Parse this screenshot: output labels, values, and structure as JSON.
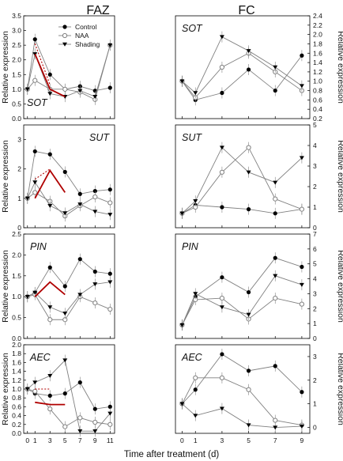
{
  "header": {
    "left": "FAZ",
    "right": "FC"
  },
  "xlabel": "Time after treatment (d)",
  "ylabel_left": "Relative expression",
  "ylabel_right": "Relative expression",
  "legend": {
    "control": "Control",
    "naa": "NAA",
    "shading": "Shading"
  },
  "colors": {
    "line": "#808080",
    "marker": "#000000",
    "red": "#b00000",
    "axis": "#000000"
  },
  "chart_data": [
    {
      "type": "line",
      "panel": "FAZ",
      "gene": "SOT",
      "x": [
        0,
        1,
        3,
        5,
        7,
        9,
        11
      ],
      "ylim": [
        0,
        3.5
      ],
      "yticks": [
        "0.0",
        "0.5",
        "1.0",
        "1.5",
        "2.0",
        "2.5",
        "3.0",
        "3.5"
      ],
      "legend": true,
      "series": [
        {
          "name": "Control",
          "values": [
            1.0,
            2.7,
            1.5,
            1.0,
            1.1,
            0.95,
            1.05
          ]
        },
        {
          "name": "NAA",
          "values": [
            1.0,
            1.3,
            1.0,
            1.0,
            0.9,
            0.65,
            2.5
          ]
        },
        {
          "name": "Shading",
          "values": [
            1.0,
            2.2,
            0.85,
            0.75,
            0.95,
            0.75,
            2.5
          ]
        }
      ],
      "annotations": [
        {
          "style": "red",
          "x": [
            1,
            3,
            5
          ],
          "y": [
            2.2,
            1.0,
            0.75
          ]
        },
        {
          "style": "red-dotted",
          "x": [
            1,
            3
          ],
          "y": [
            2.55,
            1.15
          ]
        }
      ]
    },
    {
      "type": "line",
      "panel": "FC",
      "gene": "SOT",
      "x": [
        0,
        1,
        3,
        5,
        7,
        9
      ],
      "ylim": [
        0.2,
        2.4
      ],
      "yticks": [
        "0.2",
        "0.4",
        "0.6",
        "0.8",
        "1.0",
        "1.2",
        "1.4",
        "1.6",
        "1.8",
        "2.0",
        "2.2",
        "2.4"
      ],
      "series": [
        {
          "name": "Control",
          "values": [
            1.0,
            0.6,
            0.75,
            1.25,
            0.8,
            1.55
          ]
        },
        {
          "name": "NAA",
          "values": [
            1.0,
            0.65,
            1.3,
            1.6,
            1.2,
            0.8
          ]
        },
        {
          "name": "Shading",
          "values": [
            1.0,
            0.75,
            1.95,
            1.65,
            1.3,
            0.9
          ]
        }
      ]
    },
    {
      "type": "line",
      "panel": "FAZ",
      "gene": "SUT",
      "x": [
        0,
        1,
        3,
        5,
        7,
        9,
        11
      ],
      "ylim": [
        0,
        3.5
      ],
      "yticks": [
        "0",
        "1",
        "2",
        "3"
      ],
      "series": [
        {
          "name": "Control",
          "values": [
            1.0,
            2.6,
            2.5,
            1.9,
            1.15,
            1.25,
            1.3
          ]
        },
        {
          "name": "NAA",
          "values": [
            1.0,
            1.2,
            0.9,
            0.4,
            0.75,
            1.05,
            0.85
          ]
        },
        {
          "name": "Shading",
          "values": [
            1.0,
            1.55,
            0.75,
            0.5,
            0.8,
            0.55,
            0.45
          ]
        }
      ],
      "annotations": [
        {
          "style": "red",
          "x": [
            1,
            3,
            5
          ],
          "y": [
            1.0,
            1.95,
            1.2
          ]
        },
        {
          "style": "red-dotted",
          "x": [
            1,
            3
          ],
          "y": [
            1.65,
            2.0
          ]
        }
      ]
    },
    {
      "type": "line",
      "panel": "FC",
      "gene": "SUT",
      "x": [
        0,
        1,
        3,
        5,
        7,
        9
      ],
      "ylim": [
        0,
        5
      ],
      "yticks": [
        "0",
        "1",
        "2",
        "3",
        "4",
        "5"
      ],
      "series": [
        {
          "name": "Control",
          "values": [
            0.7,
            1.1,
            1.0,
            0.9,
            0.7,
            0.9
          ]
        },
        {
          "name": "NAA",
          "values": [
            0.7,
            1.0,
            2.7,
            3.9,
            1.4,
            0.9
          ]
        },
        {
          "name": "Shading",
          "values": [
            0.7,
            1.3,
            3.9,
            2.7,
            2.2,
            3.4
          ]
        }
      ]
    },
    {
      "type": "line",
      "panel": "FAZ",
      "gene": "PIN",
      "x": [
        0,
        1,
        3,
        5,
        7,
        9,
        11
      ],
      "ylim": [
        0,
        2.5
      ],
      "yticks": [
        "0.0",
        "0.5",
        "1.0",
        "1.5",
        "2.0",
        "2.5"
      ],
      "series": [
        {
          "name": "Control",
          "values": [
            1.0,
            1.1,
            1.7,
            1.25,
            1.9,
            1.6,
            1.55
          ]
        },
        {
          "name": "NAA",
          "values": [
            1.0,
            1.05,
            0.45,
            0.45,
            1.0,
            0.85,
            0.7
          ]
        },
        {
          "name": "Shading",
          "values": [
            1.0,
            1.1,
            0.75,
            0.6,
            1.05,
            1.3,
            1.35
          ]
        }
      ],
      "annotations": [
        {
          "style": "red",
          "x": [
            1,
            3,
            5
          ],
          "y": [
            1.0,
            1.35,
            1.05
          ]
        }
      ]
    },
    {
      "type": "line",
      "panel": "FC",
      "gene": "PIN",
      "x": [
        0,
        1,
        3,
        5,
        7,
        9
      ],
      "ylim": [
        0,
        7
      ],
      "yticks": [
        "0",
        "1",
        "2",
        "3",
        "4",
        "5",
        "6",
        "7"
      ],
      "series": [
        {
          "name": "Control",
          "values": [
            0.9,
            2.8,
            4.1,
            3.1,
            5.4,
            4.8
          ]
        },
        {
          "name": "NAA",
          "values": [
            0.9,
            2.6,
            2.7,
            1.3,
            2.7,
            2.3
          ]
        },
        {
          "name": "Shading",
          "values": [
            0.9,
            3.0,
            2.1,
            1.6,
            4.2,
            3.6
          ]
        }
      ]
    },
    {
      "type": "line",
      "panel": "FAZ",
      "gene": "AEC",
      "x": [
        0,
        1,
        3,
        5,
        7,
        9,
        11
      ],
      "ylim": [
        0,
        2.0
      ],
      "yticks": [
        "0.0",
        "0.2",
        "0.4",
        "0.6",
        "0.8",
        "1.0",
        "1.2",
        "1.4",
        "1.6",
        "1.8",
        "2.0"
      ],
      "series": [
        {
          "name": "Control",
          "values": [
            1.0,
            0.9,
            0.85,
            0.9,
            1.15,
            0.55,
            0.6
          ]
        },
        {
          "name": "NAA",
          "values": [
            1.0,
            0.95,
            0.55,
            0.15,
            0.35,
            0.25,
            0.2
          ]
        },
        {
          "name": "Shading",
          "values": [
            1.0,
            1.15,
            1.3,
            1.65,
            0.05,
            0.05,
            0.45
          ]
        }
      ],
      "annotations": [
        {
          "style": "red",
          "x": [
            1,
            3,
            5
          ],
          "y": [
            0.7,
            0.65,
            0.65
          ]
        },
        {
          "style": "red-dotted",
          "x": [
            1,
            3
          ],
          "y": [
            1.0,
            1.0
          ]
        }
      ]
    },
    {
      "type": "line",
      "panel": "FC",
      "gene": "AEC",
      "x": [
        0,
        1,
        3,
        5,
        7,
        9
      ],
      "ylim": [
        -0.25,
        3.5
      ],
      "yticks": [
        "0",
        "1",
        "2",
        "3"
      ],
      "series": [
        {
          "name": "Control",
          "values": [
            1.0,
            1.6,
            3.1,
            2.4,
            2.6,
            1.5
          ]
        },
        {
          "name": "NAA",
          "values": [
            1.0,
            2.1,
            2.1,
            1.6,
            0.3,
            0.1
          ]
        },
        {
          "name": "Shading",
          "values": [
            1.0,
            0.5,
            0.8,
            0.1,
            0.0,
            0.05
          ]
        }
      ]
    }
  ]
}
